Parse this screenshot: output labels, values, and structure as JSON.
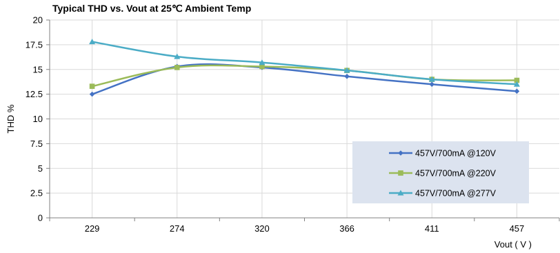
{
  "chart_data": {
    "type": "line",
    "title": "Typical THD vs. Vout at 25℃ Ambient Temp",
    "xlabel": "Vout ( V )",
    "ylabel": "THD %",
    "categories": [
      "229",
      "274",
      "320",
      "366",
      "411",
      "457"
    ],
    "ylim": [
      0,
      20
    ],
    "yticks": [
      "0",
      "2.5",
      "5",
      "7.5",
      "10",
      "12.5",
      "15",
      "17.5",
      "20"
    ],
    "grid": true,
    "legend_position": "bottom-right",
    "series": [
      {
        "name": "457V/700mA @120V",
        "values": [
          12.5,
          15.3,
          15.2,
          14.3,
          13.5,
          12.8
        ],
        "color": "#4472C4",
        "marker": "diamond"
      },
      {
        "name": "457V/700mA @220V",
        "values": [
          13.3,
          15.2,
          15.3,
          14.9,
          14.0,
          13.9
        ],
        "color": "#9BBB59",
        "marker": "square"
      },
      {
        "name": "457V/700mA @277V",
        "values": [
          17.8,
          16.3,
          15.7,
          14.9,
          14.0,
          13.5
        ],
        "color": "#4BACC6",
        "marker": "triangle"
      }
    ]
  }
}
